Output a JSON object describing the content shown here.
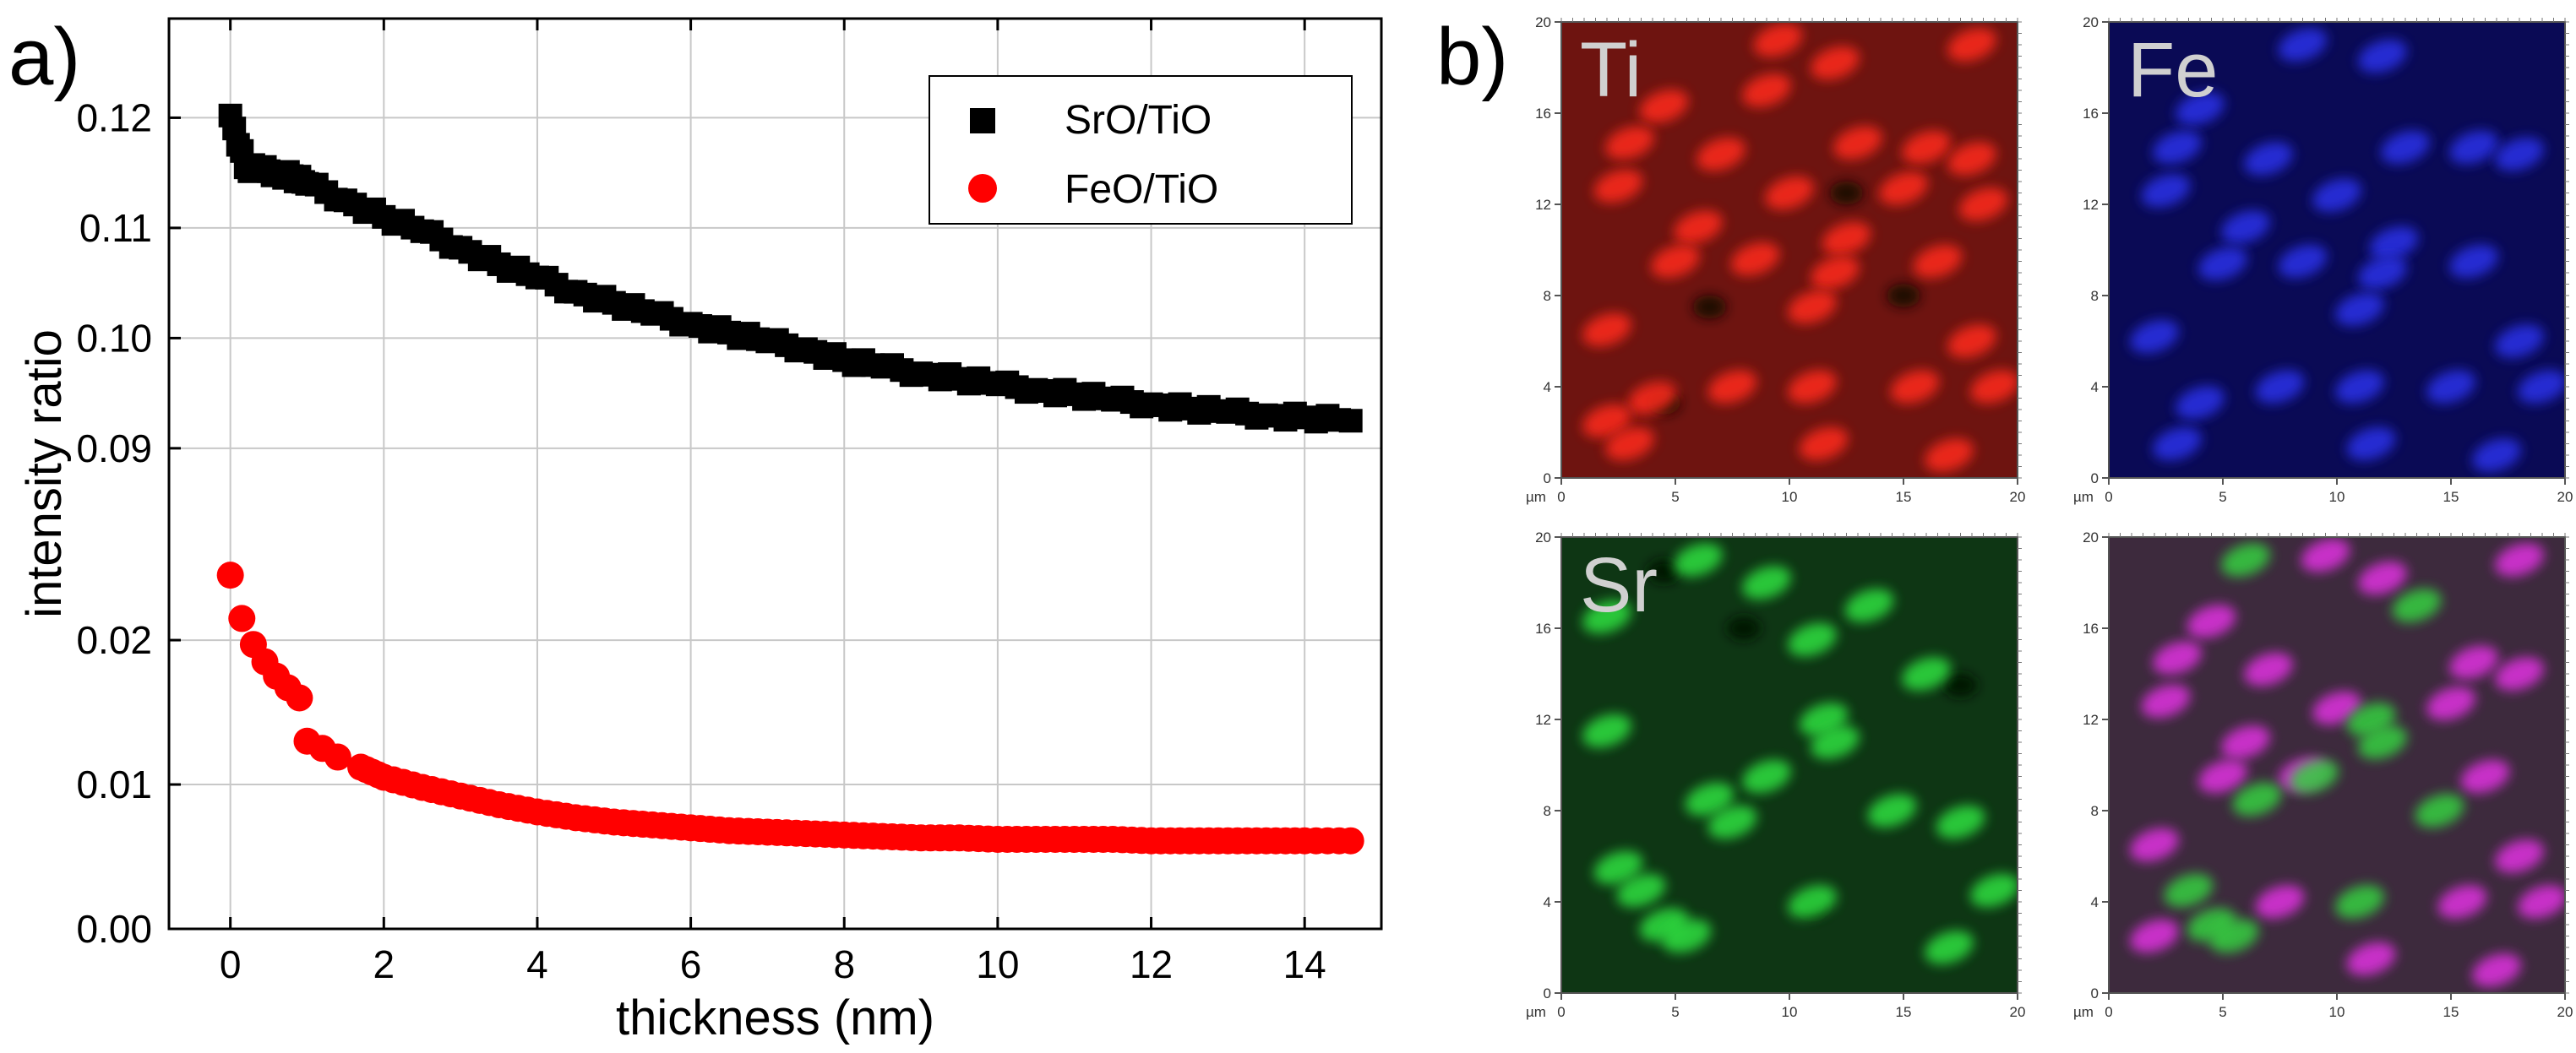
{
  "figure": {
    "panel_a_label": "a)",
    "panel_b_label": "b)"
  },
  "chart_data": [
    {
      "type": "scatter",
      "panel": "a)",
      "title": "",
      "xlabel": "thickness (nm)",
      "ylabel": "intensity ratio",
      "xlim": [
        -0.8,
        15.0
      ],
      "x_ticks": [
        0,
        2,
        4,
        6,
        8,
        10,
        12,
        14
      ],
      "broken_y_axis": true,
      "upper_ylim": [
        0.087,
        0.129
      ],
      "upper_y_ticks": [
        0.09,
        0.1,
        0.11,
        0.12
      ],
      "upper_y_tick_labels": [
        "0.09",
        "0.10",
        "0.11",
        "0.12"
      ],
      "lower_ylim": [
        0.0,
        0.031
      ],
      "lower_y_ticks": [
        0.0,
        0.01,
        0.02
      ],
      "lower_y_tick_labels": [
        "0.00",
        "0.01",
        "0.02"
      ],
      "grid": true,
      "legend_position": "top-right",
      "series": [
        {
          "name": "SrO/TiO",
          "marker": "square",
          "color": "#000000",
          "x": [
            0.0,
            0.2,
            0.4,
            0.6,
            0.8,
            1.0,
            1.5,
            2.0,
            2.5,
            3.0,
            3.5,
            4.0,
            4.5,
            5.0,
            5.5,
            6.0,
            6.5,
            7.0,
            7.5,
            8.0,
            8.5,
            9.0,
            9.5,
            10.0,
            10.5,
            11.0,
            11.5,
            12.0,
            12.5,
            13.0,
            13.5,
            14.0,
            14.6
          ],
          "values": [
            0.1202,
            0.1155,
            0.1153,
            0.115,
            0.1147,
            0.114,
            0.1125,
            0.111,
            0.1097,
            0.1082,
            0.1067,
            0.1055,
            0.1042,
            0.1032,
            0.1022,
            0.1013,
            0.1005,
            0.0997,
            0.099,
            0.098,
            0.0974,
            0.0968,
            0.0963,
            0.0958,
            0.0953,
            0.0949,
            0.0944,
            0.094,
            0.0936,
            0.0933,
            0.093,
            0.0928,
            0.0925
          ]
        },
        {
          "name": "FeO/TiO",
          "marker": "circle",
          "color": "#ff0000",
          "x": [
            0.0,
            0.15,
            0.3,
            0.45,
            0.6,
            0.75,
            0.9,
            1.0,
            1.2,
            1.4,
            1.7,
            2.0,
            2.5,
            3.0,
            3.5,
            4.0,
            4.5,
            5.0,
            5.5,
            6.0,
            6.5,
            7.0,
            7.5,
            8.0,
            8.5,
            9.0,
            9.5,
            10.0,
            10.5,
            11.0,
            11.5,
            12.0,
            12.5,
            13.0,
            13.5,
            14.0,
            14.6
          ],
          "values": [
            0.0245,
            0.0215,
            0.0197,
            0.0185,
            0.0175,
            0.0167,
            0.016,
            0.013,
            0.0125,
            0.0119,
            0.0112,
            0.0105,
            0.0098,
            0.0092,
            0.0086,
            0.0081,
            0.0077,
            0.0074,
            0.0072,
            0.007,
            0.0068,
            0.0067,
            0.0066,
            0.0065,
            0.0064,
            0.0063,
            0.0063,
            0.0062,
            0.0062,
            0.0062,
            0.0062,
            0.0061,
            0.0061,
            0.0061,
            0.0061,
            0.0061,
            0.0061
          ]
        }
      ]
    },
    {
      "type": "heatmap",
      "panel": "b)",
      "description_units": "µm",
      "unit_label": "µm",
      "axis_range_um": [
        0,
        20
      ],
      "x_ticks": [
        0,
        5,
        10,
        15,
        20
      ],
      "y_ticks": [
        0,
        4,
        8,
        12,
        16,
        20
      ],
      "maps": [
        {
          "label": "Ti",
          "background": "#6e1410",
          "spot_color": "#ff2a1e",
          "dark_color": "#1e0806",
          "spots": [
            [
              9.5,
              19.2
            ],
            [
              12,
              18.2
            ],
            [
              4.5,
              16.3
            ],
            [
              9,
              17
            ],
            [
              18,
              19
            ],
            [
              3,
              14.7
            ],
            [
              7,
              14.2
            ],
            [
              13,
              14.7
            ],
            [
              16,
              14.5
            ],
            [
              18,
              14
            ],
            [
              2.5,
              12.8
            ],
            [
              10,
              12.5
            ],
            [
              15,
              12.7
            ],
            [
              6,
              11
            ],
            [
              12.5,
              10.5
            ],
            [
              18.5,
              12
            ],
            [
              5,
              9.5
            ],
            [
              8.5,
              9.6
            ],
            [
              12,
              9
            ],
            [
              16.5,
              9.5
            ],
            [
              11,
              7.5
            ],
            [
              2,
              6.5
            ],
            [
              18,
              6
            ],
            [
              7.5,
              4
            ],
            [
              11,
              4
            ],
            [
              15.5,
              4
            ],
            [
              19,
              4
            ],
            [
              4,
              3.5
            ],
            [
              2,
              2.5
            ],
            [
              11.5,
              1.5
            ],
            [
              3,
              1.5
            ],
            [
              17,
              1
            ]
          ],
          "dark_spots": [
            [
              12.5,
              12.5
            ],
            [
              15,
              8
            ],
            [
              4.5,
              3.3
            ],
            [
              6.5,
              7.5
            ]
          ]
        },
        {
          "label": "Fe",
          "background": "#0a0a55",
          "spot_color": "#2a30e8",
          "dark_color": "#05052a",
          "spots": [
            [
              8.5,
              19
            ],
            [
              12,
              18.5
            ],
            [
              4,
              16.2
            ],
            [
              3,
              14.5
            ],
            [
              7,
              14
            ],
            [
              13,
              14.5
            ],
            [
              16,
              14.5
            ],
            [
              18,
              14.2
            ],
            [
              2.5,
              12.6
            ],
            [
              10,
              12.4
            ],
            [
              6,
              11
            ],
            [
              12.5,
              10.3
            ],
            [
              5,
              9.4
            ],
            [
              8.5,
              9.5
            ],
            [
              12,
              9
            ],
            [
              16,
              9.5
            ],
            [
              11,
              7.4
            ],
            [
              2,
              6.2
            ],
            [
              18,
              6
            ],
            [
              7.5,
              4
            ],
            [
              11,
              4
            ],
            [
              15,
              4
            ],
            [
              19,
              4
            ],
            [
              4,
              3.3
            ],
            [
              11.5,
              1.5
            ],
            [
              3,
              1.5
            ],
            [
              17,
              1
            ]
          ],
          "dark_spots": []
        },
        {
          "label": "Sr",
          "background": "#0e3614",
          "spot_color": "#2fe040",
          "dark_color": "#051406",
          "spots": [
            [
              6,
              19
            ],
            [
              9,
              18
            ],
            [
              13.5,
              17
            ],
            [
              2,
              16.5
            ],
            [
              11,
              15.5
            ],
            [
              16,
              14
            ],
            [
              2,
              11.5
            ],
            [
              11.5,
              12
            ],
            [
              12,
              11
            ],
            [
              9,
              9.5
            ],
            [
              6.5,
              8.5
            ],
            [
              7.5,
              7.5
            ],
            [
              14.5,
              8
            ],
            [
              17.5,
              7.5
            ],
            [
              2.5,
              5.5
            ],
            [
              3.5,
              4.5
            ],
            [
              4.5,
              3
            ],
            [
              5.5,
              2.5
            ],
            [
              11,
              4
            ],
            [
              17,
              2
            ],
            [
              19,
              4.5
            ]
          ],
          "dark_spots": [
            [
              4.5,
              18.5
            ],
            [
              17.5,
              13.5
            ],
            [
              11,
              3.8
            ],
            [
              8,
              16
            ]
          ]
        },
        {
          "label": "",
          "background": "#3d2a3d",
          "spot_color": "#e030e0",
          "dark_color": "#1a101a",
          "spots": [
            [
              9.5,
              19.2
            ],
            [
              12,
              18.2
            ],
            [
              4.5,
              16.3
            ],
            [
              18,
              19
            ],
            [
              3,
              14.7
            ],
            [
              7,
              14.2
            ],
            [
              16,
              14.5
            ],
            [
              18,
              14
            ],
            [
              2.5,
              12.8
            ],
            [
              10,
              12.5
            ],
            [
              15,
              12.7
            ],
            [
              6,
              11
            ],
            [
              5,
              9.5
            ],
            [
              8.5,
              9.6
            ],
            [
              16.5,
              9.5
            ],
            [
              2,
              6.5
            ],
            [
              18,
              6
            ],
            [
              7.5,
              4
            ],
            [
              15.5,
              4
            ],
            [
              19,
              4
            ],
            [
              2,
              2.5
            ],
            [
              11.5,
              1.5
            ],
            [
              17,
              1
            ]
          ],
          "extra_spots_color": "#34d040",
          "extra_spots": [
            [
              6,
              19
            ],
            [
              13.5,
              17
            ],
            [
              11.5,
              12
            ],
            [
              12,
              11
            ],
            [
              9,
              9.5
            ],
            [
              6.5,
              8.5
            ],
            [
              14.5,
              8
            ],
            [
              3.5,
              4.5
            ],
            [
              4.5,
              3
            ],
            [
              5.5,
              2.5
            ],
            [
              11,
              4
            ]
          ],
          "dark_spots": []
        }
      ]
    }
  ]
}
